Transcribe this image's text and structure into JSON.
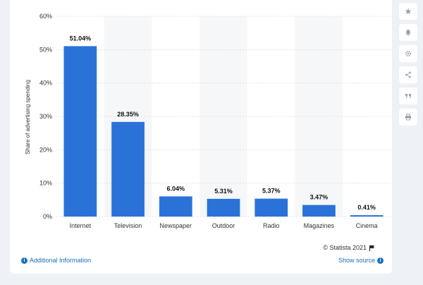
{
  "chart_data": {
    "type": "bar",
    "categories": [
      "Internet",
      "Television",
      "Newspaper",
      "Outdoor",
      "Radio",
      "Magazines",
      "Cinema"
    ],
    "values": [
      51.04,
      28.35,
      6.04,
      5.31,
      5.37,
      3.47,
      0.41
    ],
    "data_labels": [
      "51.04%",
      "28.35%",
      "6.04%",
      "5.31%",
      "5.37%",
      "3.47%",
      "0.41%"
    ],
    "ylabel": "Share of advertising spending",
    "ylim": [
      0,
      60
    ],
    "yticks": [
      0,
      10,
      20,
      30,
      40,
      50,
      60
    ],
    "ytick_labels": [
      "0%",
      "10%",
      "20%",
      "30%",
      "40%",
      "50%",
      "60%"
    ],
    "grid": true,
    "bar_color": "#2a72d8"
  },
  "footer": {
    "credit": "© Statista 2021",
    "additional_info": "Additional Information",
    "show_source": "Show source"
  },
  "toolbar": {
    "icons": [
      "star-icon",
      "bell-icon",
      "gear-icon",
      "share-icon",
      "quote-icon",
      "print-icon"
    ]
  }
}
